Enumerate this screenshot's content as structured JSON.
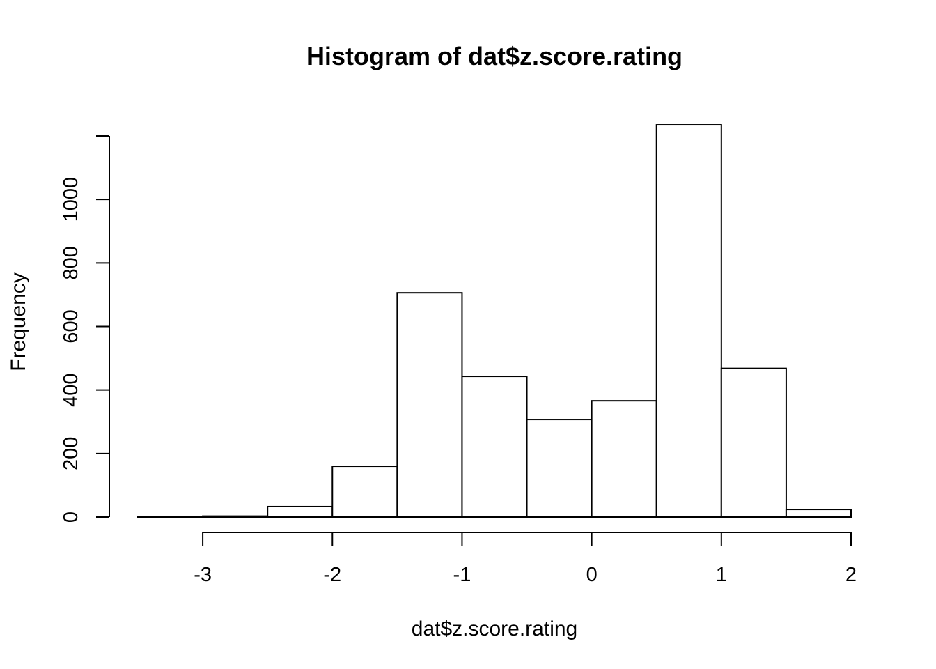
{
  "chart_data": {
    "type": "bar",
    "title": "Histogram of dat$z.score.rating",
    "xlabel": "dat$z.score.rating",
    "ylabel": "Frequency",
    "bins": [
      {
        "from": -3.5,
        "to": -3.0,
        "count": 1
      },
      {
        "from": -3.0,
        "to": -2.5,
        "count": 3
      },
      {
        "from": -2.5,
        "to": -2.0,
        "count": 33
      },
      {
        "from": -2.0,
        "to": -1.5,
        "count": 160
      },
      {
        "from": -1.5,
        "to": -1.0,
        "count": 706
      },
      {
        "from": -1.0,
        "to": -0.5,
        "count": 443
      },
      {
        "from": -0.5,
        "to": 0.0,
        "count": 307
      },
      {
        "from": 0.0,
        "to": 0.5,
        "count": 366
      },
      {
        "from": 0.5,
        "to": 1.0,
        "count": 1235
      },
      {
        "from": 1.0,
        "to": 1.5,
        "count": 468
      },
      {
        "from": 1.5,
        "to": 2.0,
        "count": 24
      }
    ],
    "x_ticks": [
      -3,
      -2,
      -1,
      0,
      1,
      2
    ],
    "x_tick_labels": [
      "-3",
      "-2",
      "-1",
      "0",
      "1",
      "2"
    ],
    "y_ticks": [
      0,
      200,
      400,
      600,
      800,
      1000,
      1200
    ],
    "y_tick_labels": [
      "0",
      "200",
      "400",
      "600",
      "800",
      "1000",
      ""
    ],
    "xlim": [
      -3.5,
      2.0
    ],
    "ylim": [
      0,
      1200
    ],
    "grid": false,
    "colors": {
      "bar_fill": "#ffffff",
      "bar_stroke": "#000000",
      "axis": "#000000"
    }
  }
}
